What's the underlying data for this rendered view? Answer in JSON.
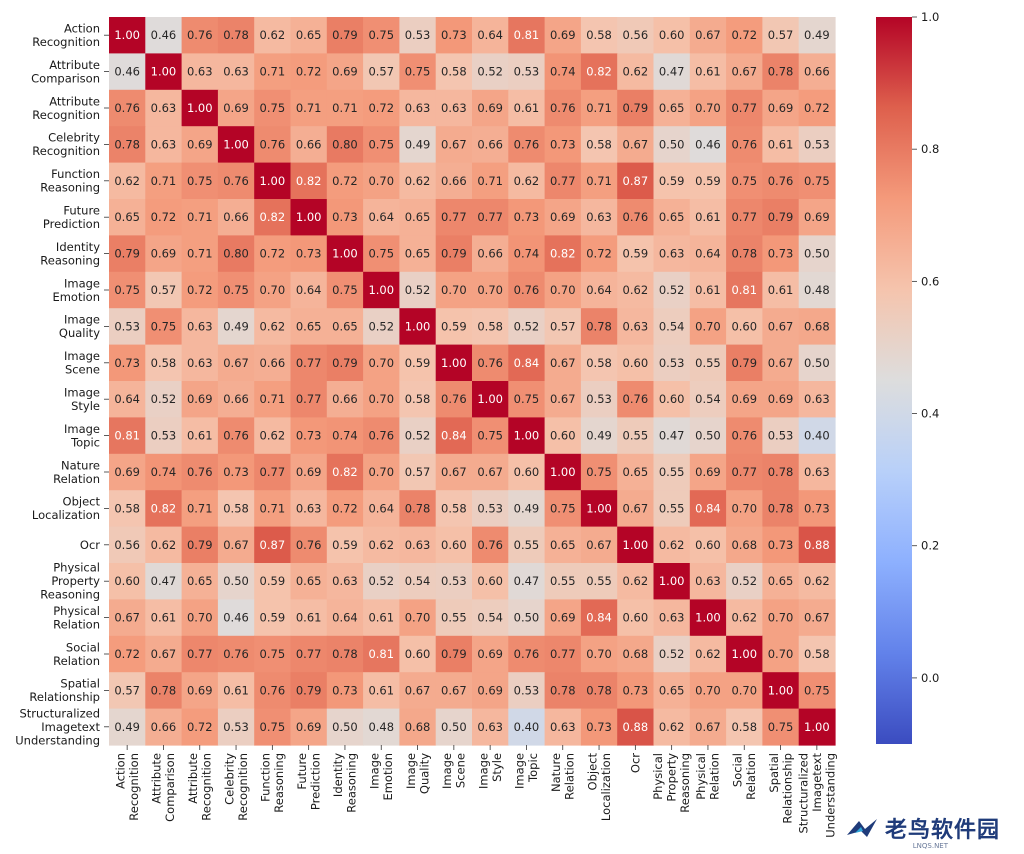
{
  "chart_data": {
    "type": "heatmap",
    "rows": [
      "Action\nRecognition",
      "Attribute\nComparison",
      "Attribute\nRecognition",
      "Celebrity\nRecognition",
      "Function\nReasoning",
      "Future\nPrediction",
      "Identity\nReasoning",
      "Image\nEmotion",
      "Image\nQuality",
      "Image\nScene",
      "Image\nStyle",
      "Image\nTopic",
      "Nature\nRelation",
      "Object\nLocalization",
      "Ocr",
      "Physical\nProperty\nReasoning",
      "Physical\nRelation",
      "Social\nRelation",
      "Spatial\nRelationship",
      "Structuralized\nImagetext\nUnderstanding"
    ],
    "columns": [
      "Action\nRecognition",
      "Attribute\nComparison",
      "Attribute\nRecognition",
      "Celebrity\nRecognition",
      "Function\nReasoning",
      "Future\nPrediction",
      "Identity\nReasoning",
      "Image\nEmotion",
      "Image\nQuality",
      "Image\nScene",
      "Image\nStyle",
      "Image\nTopic",
      "Nature\nRelation",
      "Object\nLocalization",
      "Ocr",
      "Physical\nProperty\nReasoning",
      "Physical\nRelation",
      "Social\nRelation",
      "Spatial\nRelationship",
      "Structuralized\nImagetext\nUnderstanding"
    ],
    "values": [
      [
        1.0,
        0.46,
        0.76,
        0.78,
        0.62,
        0.65,
        0.79,
        0.75,
        0.53,
        0.73,
        0.64,
        0.81,
        0.69,
        0.58,
        0.56,
        0.6,
        0.67,
        0.72,
        0.57,
        0.49
      ],
      [
        0.46,
        1.0,
        0.63,
        0.63,
        0.71,
        0.72,
        0.69,
        0.57,
        0.75,
        0.58,
        0.52,
        0.53,
        0.74,
        0.82,
        0.62,
        0.47,
        0.61,
        0.67,
        0.78,
        0.66
      ],
      [
        0.76,
        0.63,
        1.0,
        0.69,
        0.75,
        0.71,
        0.71,
        0.72,
        0.63,
        0.63,
        0.69,
        0.61,
        0.76,
        0.71,
        0.79,
        0.65,
        0.7,
        0.77,
        0.69,
        0.72
      ],
      [
        0.78,
        0.63,
        0.69,
        1.0,
        0.76,
        0.66,
        0.8,
        0.75,
        0.49,
        0.67,
        0.66,
        0.76,
        0.73,
        0.58,
        0.67,
        0.5,
        0.46,
        0.76,
        0.61,
        0.53
      ],
      [
        0.62,
        0.71,
        0.75,
        0.76,
        1.0,
        0.82,
        0.72,
        0.7,
        0.62,
        0.66,
        0.71,
        0.62,
        0.77,
        0.71,
        0.87,
        0.59,
        0.59,
        0.75,
        0.76,
        0.75
      ],
      [
        0.65,
        0.72,
        0.71,
        0.66,
        0.82,
        1.0,
        0.73,
        0.64,
        0.65,
        0.77,
        0.77,
        0.73,
        0.69,
        0.63,
        0.76,
        0.65,
        0.61,
        0.77,
        0.79,
        0.69
      ],
      [
        0.79,
        0.69,
        0.71,
        0.8,
        0.72,
        0.73,
        1.0,
        0.75,
        0.65,
        0.79,
        0.66,
        0.74,
        0.82,
        0.72,
        0.59,
        0.63,
        0.64,
        0.78,
        0.73,
        0.5
      ],
      [
        0.75,
        0.57,
        0.72,
        0.75,
        0.7,
        0.64,
        0.75,
        1.0,
        0.52,
        0.7,
        0.7,
        0.76,
        0.7,
        0.64,
        0.62,
        0.52,
        0.61,
        0.81,
        0.61,
        0.48
      ],
      [
        0.53,
        0.75,
        0.63,
        0.49,
        0.62,
        0.65,
        0.65,
        0.52,
        1.0,
        0.59,
        0.58,
        0.52,
        0.57,
        0.78,
        0.63,
        0.54,
        0.7,
        0.6,
        0.67,
        0.68
      ],
      [
        0.73,
        0.58,
        0.63,
        0.67,
        0.66,
        0.77,
        0.79,
        0.7,
        0.59,
        1.0,
        0.76,
        0.84,
        0.67,
        0.58,
        0.6,
        0.53,
        0.55,
        0.79,
        0.67,
        0.5
      ],
      [
        0.64,
        0.52,
        0.69,
        0.66,
        0.71,
        0.77,
        0.66,
        0.7,
        0.58,
        0.76,
        1.0,
        0.75,
        0.67,
        0.53,
        0.76,
        0.6,
        0.54,
        0.69,
        0.69,
        0.63
      ],
      [
        0.81,
        0.53,
        0.61,
        0.76,
        0.62,
        0.73,
        0.74,
        0.76,
        0.52,
        0.84,
        0.75,
        1.0,
        0.6,
        0.49,
        0.55,
        0.47,
        0.5,
        0.76,
        0.53,
        0.4
      ],
      [
        0.69,
        0.74,
        0.76,
        0.73,
        0.77,
        0.69,
        0.82,
        0.7,
        0.57,
        0.67,
        0.67,
        0.6,
        1.0,
        0.75,
        0.65,
        0.55,
        0.69,
        0.77,
        0.78,
        0.63
      ],
      [
        0.58,
        0.82,
        0.71,
        0.58,
        0.71,
        0.63,
        0.72,
        0.64,
        0.78,
        0.58,
        0.53,
        0.49,
        0.75,
        1.0,
        0.67,
        0.55,
        0.84,
        0.7,
        0.78,
        0.73
      ],
      [
        0.56,
        0.62,
        0.79,
        0.67,
        0.87,
        0.76,
        0.59,
        0.62,
        0.63,
        0.6,
        0.76,
        0.55,
        0.65,
        0.67,
        1.0,
        0.62,
        0.6,
        0.68,
        0.73,
        0.88
      ],
      [
        0.6,
        0.47,
        0.65,
        0.5,
        0.59,
        0.65,
        0.63,
        0.52,
        0.54,
        0.53,
        0.6,
        0.47,
        0.55,
        0.55,
        0.62,
        1.0,
        0.63,
        0.52,
        0.65,
        0.62
      ],
      [
        0.67,
        0.61,
        0.7,
        0.46,
        0.59,
        0.61,
        0.64,
        0.61,
        0.7,
        0.55,
        0.54,
        0.5,
        0.69,
        0.84,
        0.6,
        0.63,
        1.0,
        0.62,
        0.7,
        0.67
      ],
      [
        0.72,
        0.67,
        0.77,
        0.76,
        0.75,
        0.77,
        0.78,
        0.81,
        0.6,
        0.79,
        0.69,
        0.76,
        0.77,
        0.7,
        0.68,
        0.52,
        0.62,
        1.0,
        0.7,
        0.58
      ],
      [
        0.57,
        0.78,
        0.69,
        0.61,
        0.76,
        0.79,
        0.73,
        0.61,
        0.67,
        0.67,
        0.69,
        0.53,
        0.78,
        0.78,
        0.73,
        0.65,
        0.7,
        0.7,
        1.0,
        0.75
      ],
      [
        0.49,
        0.66,
        0.72,
        0.53,
        0.75,
        0.69,
        0.5,
        0.48,
        0.68,
        0.5,
        0.63,
        0.4,
        0.63,
        0.73,
        0.88,
        0.62,
        0.67,
        0.58,
        0.75,
        1.0
      ]
    ],
    "colormap": "coolwarm",
    "vmin": -0.1,
    "vmax": 1.0,
    "colorbar_ticks": [
      "1.0",
      "0.8",
      "0.6",
      "0.4",
      "0.2",
      "0.0"
    ],
    "colorbar_tick_values": [
      1.0,
      0.8,
      0.6,
      0.4,
      0.2,
      0.0
    ],
    "annotation_format": "2 decimals"
  },
  "watermark": {
    "text": "老鸟软件园",
    "subtext": "LNQS.NET",
    "color": "#1f3b7a"
  }
}
